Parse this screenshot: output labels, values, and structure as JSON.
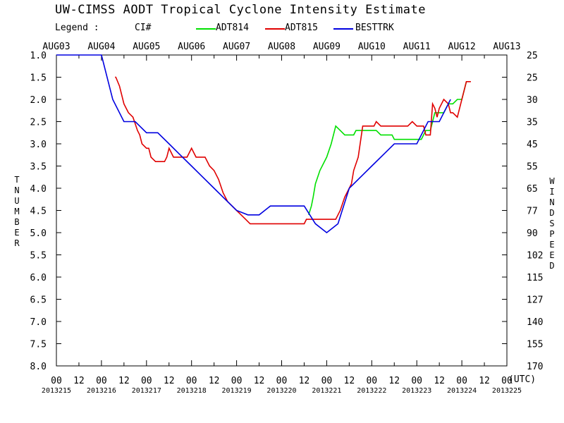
{
  "header": {
    "title": "UW-CIMSS AODT Tropical Cyclone Intensity Estimate",
    "legend_label": "Legend :",
    "legend_ci": "CI#"
  },
  "colors": {
    "ADT814": "#00e000",
    "ADT815": "#e00000",
    "BESTTRK": "#0000e0"
  },
  "chart_data": {
    "type": "line",
    "title": "UW-CIMSS AODT Tropical Cyclone Intensity Estimate",
    "ylabel_left": "T NUMBER",
    "ylabel_right": "WIND SPEED",
    "xlabel_unit": "(UTC)",
    "ylim": [
      1.0,
      8.0
    ],
    "y_inverted": true,
    "y_ticks": [
      "1.0",
      "1.5",
      "2.0",
      "2.5",
      "3.0",
      "3.5",
      "4.0",
      "4.5",
      "5.0",
      "5.5",
      "6.0",
      "6.5",
      "7.0",
      "7.5",
      "8.0"
    ],
    "wind_ticks": [
      "25",
      "25",
      "30",
      "35",
      "45",
      "55",
      "65",
      "77",
      "90",
      "102",
      "115",
      "127",
      "140",
      "155",
      "170"
    ],
    "top_date_labels": [
      "AUG03",
      "AUG04",
      "AUG05",
      "AUG06",
      "AUG07",
      "AUG08",
      "AUG09",
      "AUG10",
      "AUG11",
      "AUG12",
      "AUG13"
    ],
    "x_tick_labels": [
      "00",
      "12",
      "00",
      "12",
      "00",
      "12",
      "00",
      "12",
      "00",
      "12",
      "00",
      "12",
      "00",
      "12",
      "00",
      "12",
      "00",
      "12",
      "00",
      "12",
      "00"
    ],
    "x_date_labels": [
      "2013215",
      "2013216",
      "2013217",
      "2013218",
      "2013219",
      "2013220",
      "2013221",
      "2013222",
      "2013223",
      "2013224",
      "2013225"
    ],
    "x_unit_days": 10,
    "series": [
      {
        "name": "ADT814",
        "x": [
          5.6,
          5.66,
          5.7,
          5.75,
          5.85,
          6.0,
          6.1,
          6.2,
          6.3,
          6.4,
          6.5,
          6.6,
          6.65,
          6.7,
          6.75,
          6.8,
          6.9,
          7.0,
          7.1,
          7.2,
          7.3,
          7.4,
          7.45,
          7.5,
          7.55,
          7.6,
          7.7,
          7.8,
          7.9,
          8.0,
          8.1,
          8.15,
          8.2,
          8.3,
          8.35,
          8.4,
          8.5,
          8.6,
          8.7,
          8.8,
          8.9,
          9.0,
          9.05,
          9.1
        ],
        "y": [
          4.6,
          4.4,
          4.2,
          3.9,
          3.6,
          3.3,
          3.0,
          2.6,
          2.7,
          2.8,
          2.8,
          2.8,
          2.7,
          2.7,
          2.7,
          2.7,
          2.7,
          2.7,
          2.7,
          2.8,
          2.8,
          2.8,
          2.8,
          2.9,
          2.9,
          2.9,
          2.9,
          2.9,
          2.9,
          2.9,
          2.9,
          2.8,
          2.7,
          2.7,
          2.5,
          2.3,
          2.3,
          2.3,
          2.1,
          2.1,
          2.0,
          2.0,
          1.8,
          1.6
        ]
      },
      {
        "name": "ADT815",
        "x": [
          1.3,
          1.32,
          1.4,
          1.5,
          1.55,
          1.6,
          1.7,
          1.8,
          1.85,
          1.9,
          2.0,
          2.05,
          2.1,
          2.2,
          2.25,
          2.3,
          2.35,
          2.4,
          2.45,
          2.5,
          2.6,
          2.7,
          2.72,
          2.8,
          2.9,
          3.0,
          3.05,
          3.1,
          3.2,
          3.3,
          3.4,
          3.5,
          3.6,
          3.7,
          3.8,
          3.9,
          4.0,
          4.1,
          4.2,
          4.3,
          4.4,
          4.5,
          4.6,
          4.7,
          4.8,
          4.9,
          5.0,
          5.1,
          5.2,
          5.3,
          5.4,
          5.5,
          5.55,
          5.6,
          5.7,
          5.8,
          5.9,
          6.0,
          6.1,
          6.2,
          6.3,
          6.4,
          6.5,
          6.55,
          6.6,
          6.7,
          6.8,
          6.9,
          7.0,
          7.05,
          7.1,
          7.2,
          7.3,
          7.4,
          7.5,
          7.6,
          7.7,
          7.8,
          7.9,
          8.0,
          8.05,
          8.1,
          8.15,
          8.2,
          8.25,
          8.3,
          8.35,
          8.4,
          8.45,
          8.5,
          8.6,
          8.7,
          8.75,
          8.8,
          8.9,
          9.0,
          9.1,
          9.2
        ],
        "y": [
          1.5,
          1.5,
          1.7,
          2.1,
          2.2,
          2.3,
          2.4,
          2.7,
          2.8,
          3.0,
          3.1,
          3.1,
          3.3,
          3.4,
          3.4,
          3.4,
          3.4,
          3.4,
          3.3,
          3.1,
          3.3,
          3.3,
          3.3,
          3.3,
          3.3,
          3.1,
          3.2,
          3.3,
          3.3,
          3.3,
          3.5,
          3.6,
          3.8,
          4.1,
          4.3,
          4.4,
          4.5,
          4.6,
          4.7,
          4.8,
          4.8,
          4.8,
          4.8,
          4.8,
          4.8,
          4.8,
          4.8,
          4.8,
          4.8,
          4.8,
          4.8,
          4.8,
          4.7,
          4.7,
          4.7,
          4.7,
          4.7,
          4.7,
          4.7,
          4.7,
          4.5,
          4.2,
          4.0,
          3.9,
          3.6,
          3.3,
          2.6,
          2.6,
          2.6,
          2.6,
          2.5,
          2.6,
          2.6,
          2.6,
          2.6,
          2.6,
          2.6,
          2.6,
          2.5,
          2.6,
          2.6,
          2.6,
          2.6,
          2.8,
          2.8,
          2.8,
          2.1,
          2.2,
          2.4,
          2.2,
          2.0,
          2.1,
          2.3,
          2.3,
          2.4,
          2.0,
          1.6,
          1.6
        ]
      },
      {
        "name": "BESTTRK",
        "x": [
          0.0,
          0.25,
          0.5,
          0.75,
          1.0,
          1.25,
          1.5,
          1.75,
          2.0,
          2.25,
          2.5,
          2.75,
          3.0,
          3.25,
          3.5,
          3.75,
          4.0,
          4.25,
          4.5,
          4.75,
          5.0,
          5.25,
          5.5,
          5.75,
          6.0,
          6.25,
          6.5,
          6.75,
          7.0,
          7.25,
          7.5,
          7.75,
          8.0,
          8.25,
          8.5,
          8.75
        ],
        "y": [
          1.0,
          1.0,
          1.0,
          1.0,
          1.0,
          2.0,
          2.5,
          2.5,
          2.75,
          2.75,
          3.0,
          3.25,
          3.5,
          3.75,
          4.0,
          4.25,
          4.5,
          4.6,
          4.6,
          4.4,
          4.4,
          4.4,
          4.4,
          4.8,
          5.0,
          4.8,
          4.0,
          3.75,
          3.5,
          3.25,
          3.0,
          3.0,
          3.0,
          2.5,
          2.5,
          2.0
        ]
      }
    ]
  }
}
